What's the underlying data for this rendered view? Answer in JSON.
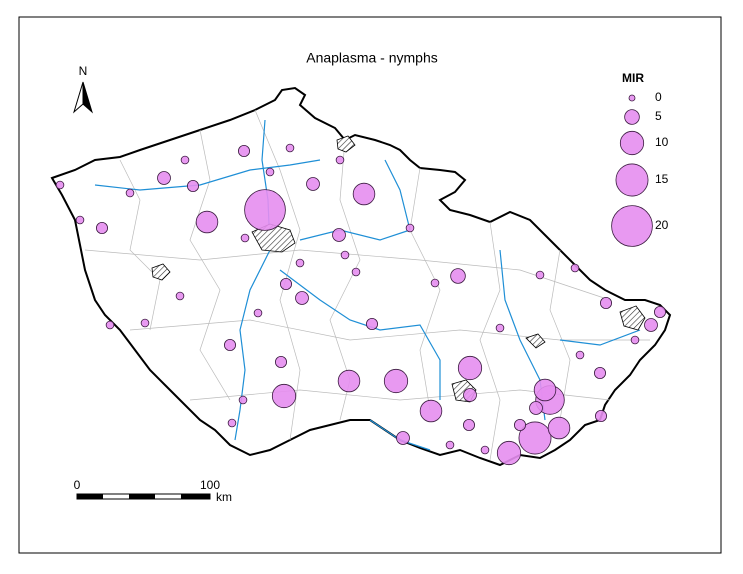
{
  "title": "Anaplasma - nymphs",
  "north": "N",
  "legend": {
    "title": "MIR",
    "values": [
      0,
      5,
      10,
      15,
      20
    ]
  },
  "scale_bar": {
    "labels": [
      "0",
      "100"
    ],
    "unit": "km"
  },
  "sites": {
    "mir": [
      20,
      9,
      9,
      4,
      4,
      1,
      4,
      3,
      3,
      3,
      4,
      3,
      3,
      3,
      10,
      9,
      10,
      9,
      10,
      5,
      3,
      4,
      10,
      15,
      9,
      13,
      9,
      4,
      3,
      3,
      3,
      3,
      4,
      3,
      4,
      3,
      1,
      1,
      1,
      1,
      1,
      1,
      1,
      1,
      1,
      1,
      1,
      1,
      1,
      1,
      1,
      1,
      1,
      1,
      1,
      1,
      1,
      1,
      1,
      1,
      1
    ]
  }
}
